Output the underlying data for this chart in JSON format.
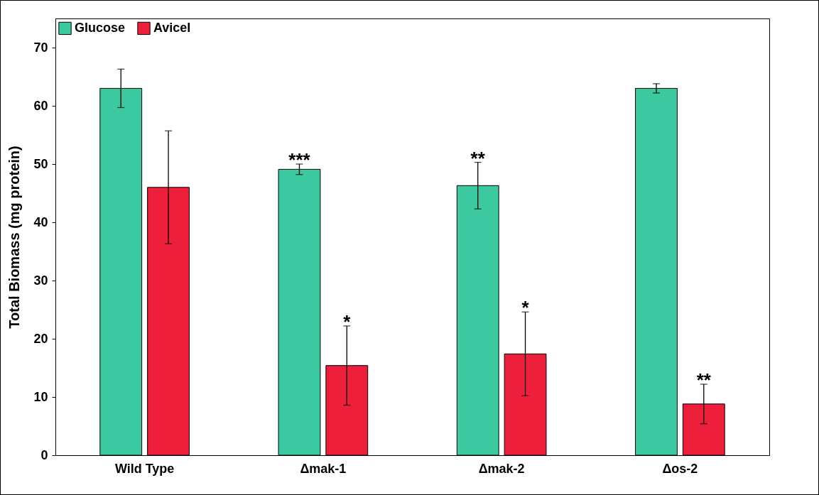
{
  "chart_data": {
    "type": "bar",
    "ylabel": "Total Biomass (mg protein)",
    "categories": [
      "Wild Type",
      "Δmak-1",
      "Δmak-2",
      "Δos-2"
    ],
    "series": [
      {
        "name": "Glucose",
        "color": "#3cc9a0",
        "values": [
          63,
          49.1,
          46.3,
          63
        ],
        "errors": [
          3.3,
          0.9,
          4,
          0.8
        ],
        "value_labels": [
          null,
          "***",
          "**",
          null
        ]
      },
      {
        "name": "Avicel",
        "color": "#ed1f3a",
        "values": [
          46,
          15.4,
          17.4,
          8.8
        ],
        "errors": [
          9.7,
          6.8,
          7.2,
          3.4
        ],
        "value_labels": [
          null,
          "*",
          "*",
          "**"
        ]
      }
    ],
    "ylim": [
      0,
      75
    ],
    "yticks": [
      0,
      10,
      20,
      30,
      40,
      50,
      60,
      70
    ],
    "grid": false,
    "legend": "top left"
  }
}
